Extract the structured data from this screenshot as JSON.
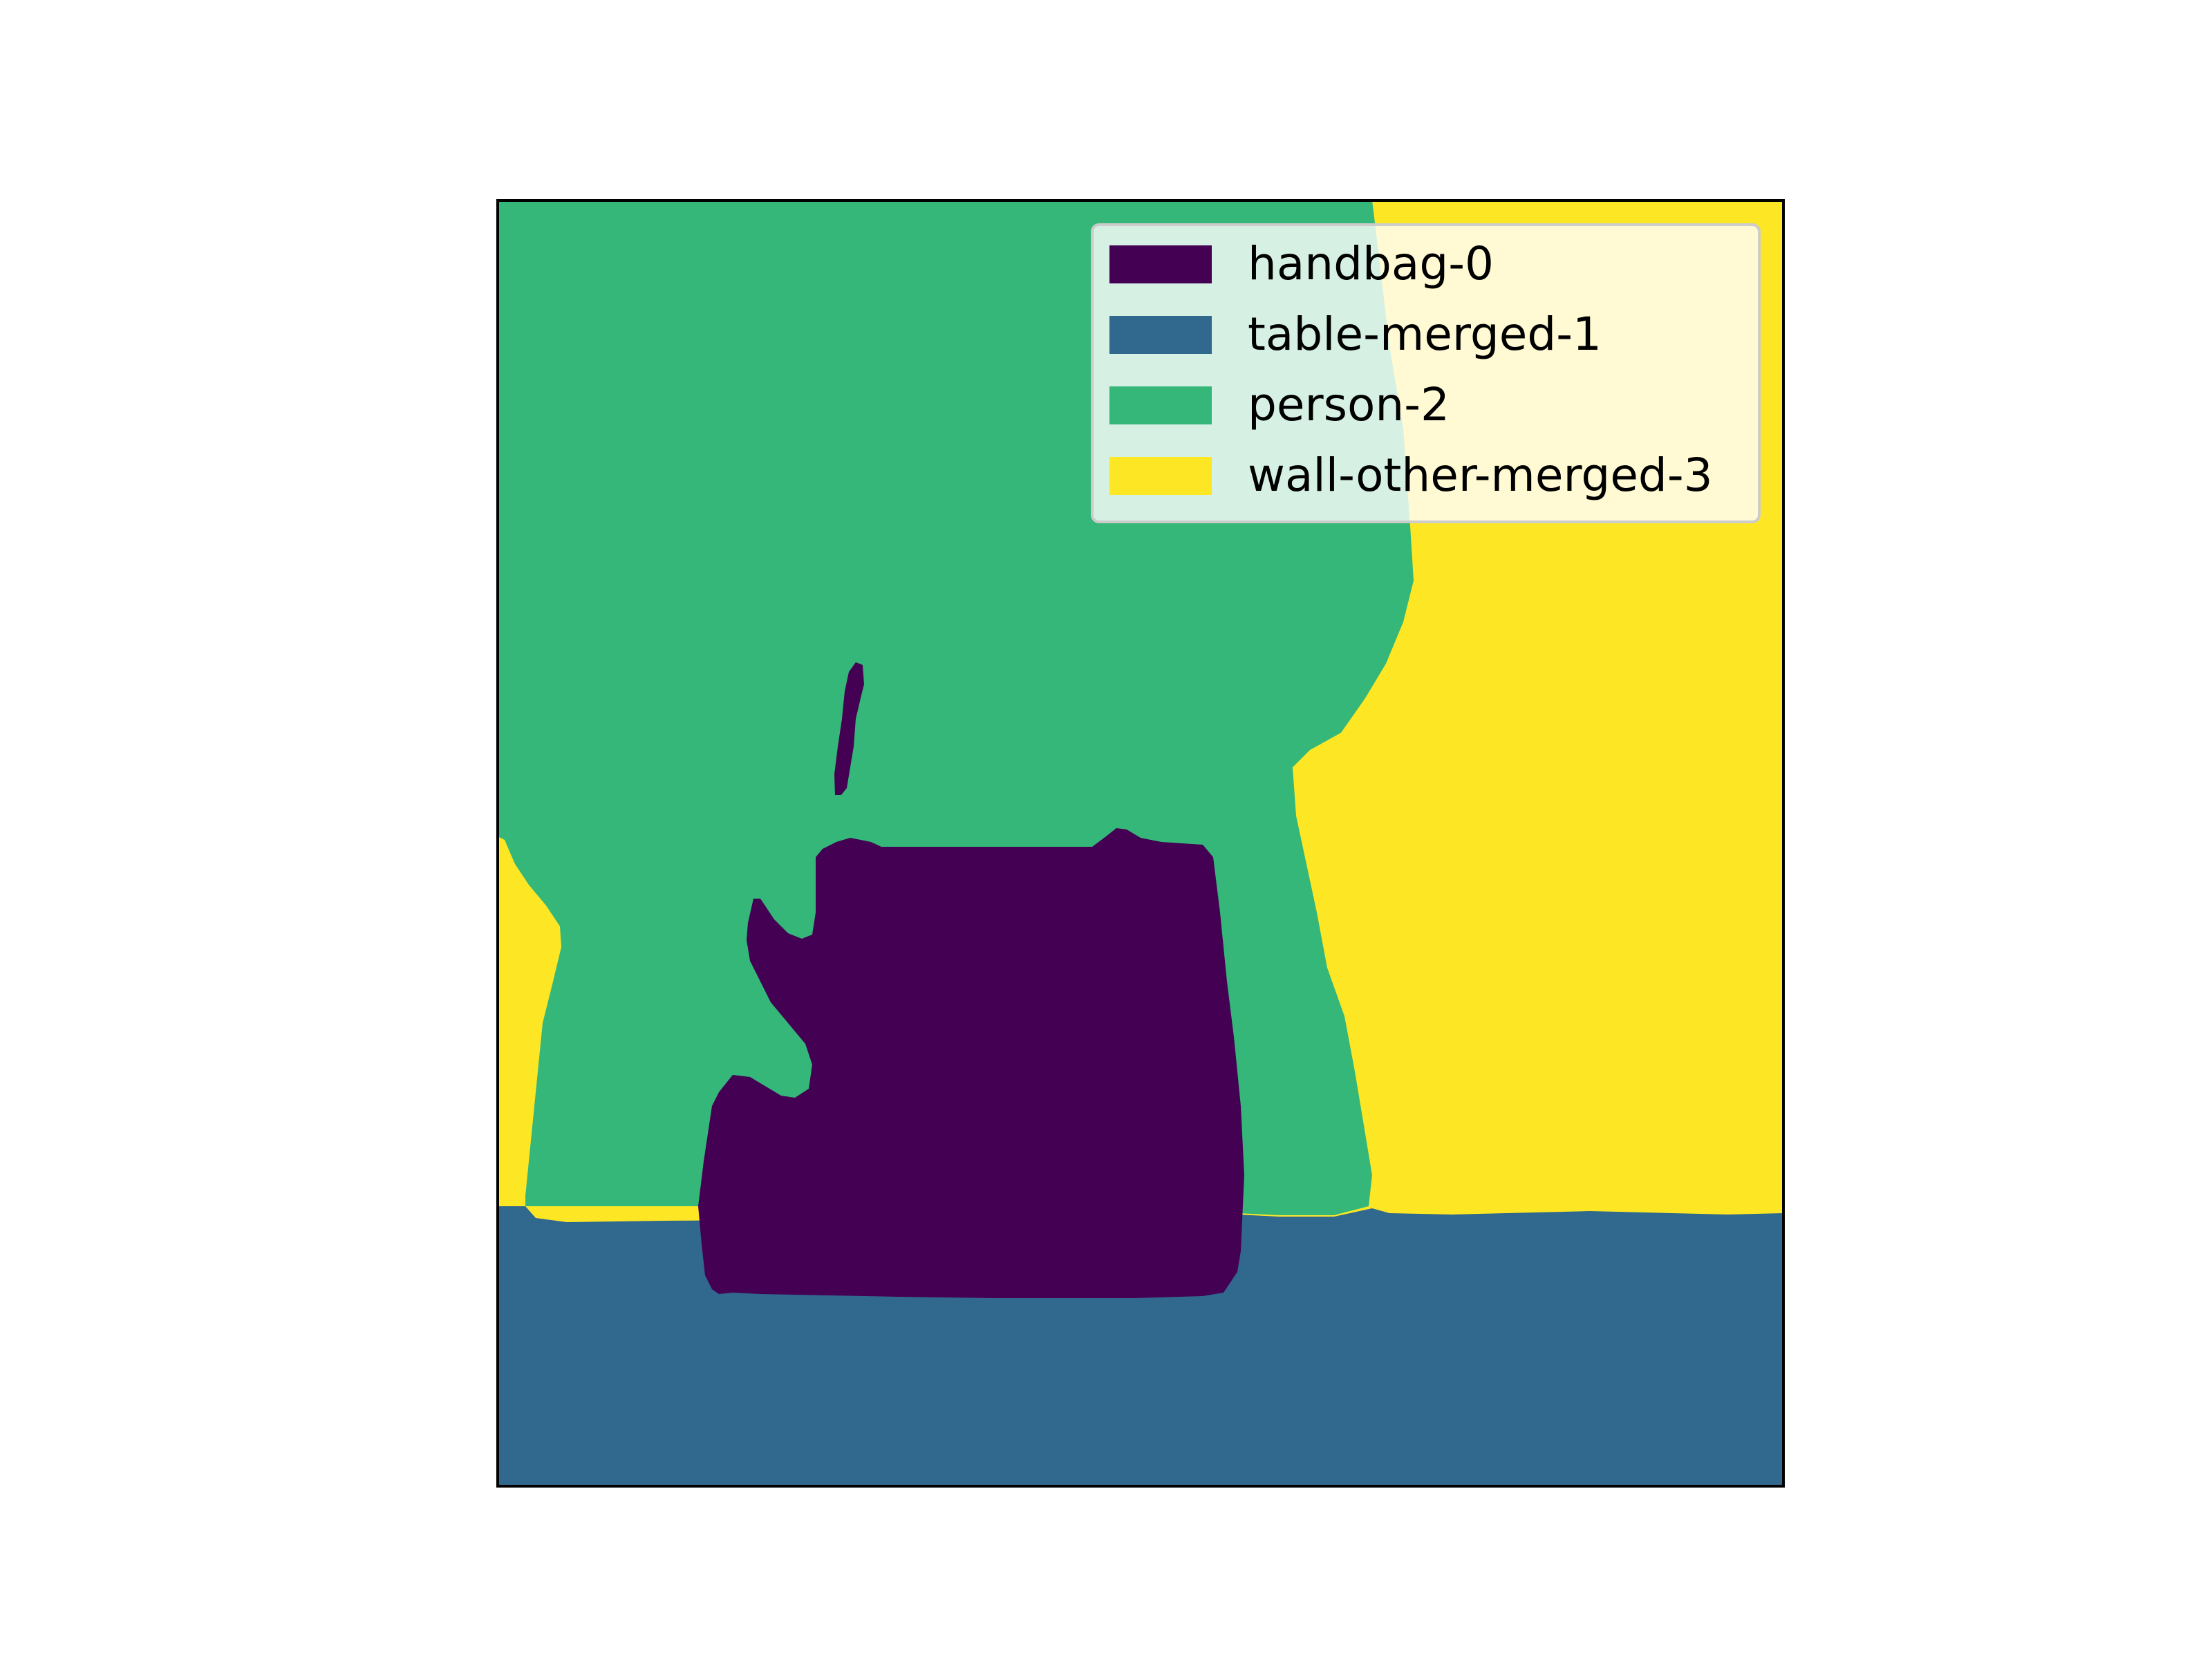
{
  "legend": {
    "placement": "upper-right",
    "items": [
      {
        "label": "handbag-0",
        "color": "#440154"
      },
      {
        "label": "table-merged-1",
        "color": "#31688e"
      },
      {
        "label": "person-2",
        "color": "#35b779"
      },
      {
        "label": "wall-other-merged-3",
        "color": "#fde725"
      }
    ]
  },
  "segments": [
    {
      "name": "wall-other-merged-3",
      "color": "#fde725"
    },
    {
      "name": "person-2",
      "color": "#35b779"
    },
    {
      "name": "table-merged-1",
      "color": "#31688e"
    },
    {
      "name": "handbag-0",
      "color": "#440154"
    }
  ]
}
